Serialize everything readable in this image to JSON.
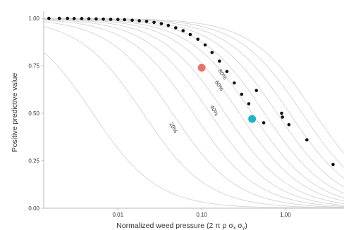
{
  "chart_data": {
    "type": "scatter",
    "xlabel": "Normalized weed pressure (2 π ρ σ",
    "xlabel_sub1": "x",
    "xlabel_mid": " σ",
    "xlabel_sub2": "y",
    "xlabel_end": ")",
    "ylabel": "Positive predictive value",
    "x_scale": "log",
    "xlim": [
      0.0013,
      5.0
    ],
    "ylim": [
      0,
      1.03
    ],
    "x_ticks": [
      {
        "value": 0.01,
        "label": "0.01"
      },
      {
        "value": 0.1,
        "label": "0.10"
      },
      {
        "value": 1.0,
        "label": "1.00"
      }
    ],
    "y_ticks": [
      {
        "value": 0.0,
        "label": "0.00"
      },
      {
        "value": 0.25,
        "label": "0.25"
      },
      {
        "value": 0.5,
        "label": "0.50"
      },
      {
        "value": 0.75,
        "label": "0.75"
      },
      {
        "value": 1.0,
        "label": "1.00"
      }
    ],
    "grid": false,
    "background_curves": [
      {
        "log_center": -2.3
      },
      {
        "log_center": -1.7
      },
      {
        "log_center": -1.35
      },
      {
        "log_center": -1.1
      },
      {
        "log_center": -0.9
      },
      {
        "log_center": -0.72
      },
      {
        "log_center": -0.55
      },
      {
        "log_center": -0.4
      },
      {
        "log_center": -0.25
      },
      {
        "log_center": -0.1
      },
      {
        "log_center": 0.05
      },
      {
        "log_center": 0.2
      },
      {
        "log_center": 0.35
      }
    ],
    "curve_labels": [
      {
        "text": "20%",
        "x": 0.044,
        "y": 0.42,
        "angle": 62
      },
      {
        "text": "40%",
        "x": 0.135,
        "y": 0.51,
        "angle": 60
      },
      {
        "text": "60%",
        "x": 0.155,
        "y": 0.64,
        "angle": 58
      },
      {
        "text": "80%",
        "x": 0.17,
        "y": 0.7,
        "angle": 56
      }
    ],
    "dotted_series": [
      {
        "x": 0.0015,
        "y": 1.0
      },
      {
        "x": 0.002,
        "y": 1.0
      },
      {
        "x": 0.0025,
        "y": 1.0
      },
      {
        "x": 0.003,
        "y": 0.999
      },
      {
        "x": 0.0037,
        "y": 0.999
      },
      {
        "x": 0.0045,
        "y": 0.998
      },
      {
        "x": 0.0055,
        "y": 0.997
      },
      {
        "x": 0.0067,
        "y": 0.996
      },
      {
        "x": 0.0082,
        "y": 0.995
      },
      {
        "x": 0.01,
        "y": 0.994
      },
      {
        "x": 0.012,
        "y": 0.993
      },
      {
        "x": 0.0148,
        "y": 0.99
      },
      {
        "x": 0.018,
        "y": 0.987
      },
      {
        "x": 0.022,
        "y": 0.984
      },
      {
        "x": 0.027,
        "y": 0.979
      },
      {
        "x": 0.033,
        "y": 0.972
      },
      {
        "x": 0.04,
        "y": 0.963
      },
      {
        "x": 0.049,
        "y": 0.95
      },
      {
        "x": 0.06,
        "y": 0.935
      },
      {
        "x": 0.073,
        "y": 0.915
      },
      {
        "x": 0.09,
        "y": 0.89
      },
      {
        "x": 0.11,
        "y": 0.86
      },
      {
        "x": 0.133,
        "y": 0.82
      },
      {
        "x": 0.163,
        "y": 0.775
      },
      {
        "x": 0.2,
        "y": 0.72
      },
      {
        "x": 0.245,
        "y": 0.66
      },
      {
        "x": 0.3,
        "y": 0.6
      },
      {
        "x": 0.365,
        "y": 0.55
      },
      {
        "x": 0.45,
        "y": 0.62
      },
      {
        "x": 0.55,
        "y": 0.45
      },
      {
        "x": 0.9,
        "y": 0.5
      },
      {
        "x": 0.92,
        "y": 0.48
      },
      {
        "x": 1.1,
        "y": 0.44
      },
      {
        "x": 1.8,
        "y": 0.36
      },
      {
        "x": 3.7,
        "y": 0.23
      }
    ],
    "highlight_points": [
      {
        "x": 0.1,
        "y": 0.74,
        "color": "#EE7166"
      },
      {
        "x": 0.4,
        "y": 0.47,
        "color": "#1AB5C9"
      }
    ],
    "colors": {
      "dots": "#111111",
      "curves": "#d7d7d7",
      "axis": "#b8b8b8",
      "text": "#333333"
    }
  }
}
